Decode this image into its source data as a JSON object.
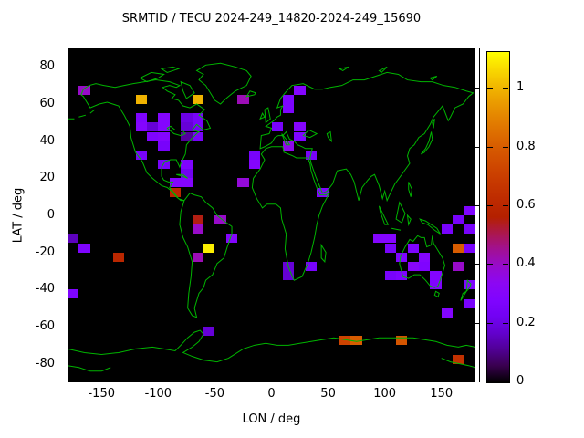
{
  "title": "SRMTID / TECU 2024-249_14820-2024-249_15690",
  "axes": {
    "x": {
      "label": "LON / deg",
      "range": [
        -180,
        180
      ],
      "ticks": [
        -150,
        -100,
        -50,
        0,
        50,
        100,
        150
      ]
    },
    "y": {
      "label": "LAT / deg",
      "range": [
        -90,
        90
      ],
      "ticks": [
        80,
        60,
        40,
        20,
        0,
        -20,
        -40,
        -60,
        -80
      ]
    }
  },
  "colorbar": {
    "range": [
      0,
      1.125
    ],
    "ticks": [
      0,
      0.2,
      0.4,
      0.6,
      0.8,
      1
    ],
    "tick_labels": [
      "0",
      "0.2",
      "0.4",
      "0.6",
      "0.8",
      "1"
    ],
    "palette": "gnuplot pm3d rgbformulae 7,5,15 (black-violet-magenta-red-orange-yellow)"
  },
  "colors": {
    "map_background": "#000000",
    "coastline": "#00b400",
    "text": "#000000",
    "page_background": "#ffffff"
  },
  "chart_data": {
    "type": "heatmap",
    "title": "SRMTID / TECU 2024-249_14820-2024-249_15690",
    "xlabel": "LON / deg",
    "ylabel": "LAT / deg",
    "xlim": [
      -180,
      180
    ],
    "ylim": [
      -90,
      90
    ],
    "value_range": [
      0,
      1.125
    ],
    "cell_size_deg": {
      "lon": 10,
      "lat": 5
    },
    "note": "points are [lon_center, lat_center, TECU value]; background cells = 0 (black)",
    "points": [
      [
        -165,
        67.5,
        0.4
      ],
      [
        -115,
        62.5,
        1.0
      ],
      [
        -65,
        62.5,
        1.0
      ],
      [
        -115,
        52.5,
        0.28
      ],
      [
        -95,
        52.5,
        0.3
      ],
      [
        -75,
        52.5,
        0.2
      ],
      [
        -65,
        52.5,
        0.25
      ],
      [
        -115,
        47.5,
        0.3
      ],
      [
        -105,
        47.5,
        0.18
      ],
      [
        -95,
        47.5,
        0.3
      ],
      [
        -75,
        47.5,
        0.18
      ],
      [
        -65,
        47.5,
        0.25
      ],
      [
        -105,
        42.5,
        0.28
      ],
      [
        -95,
        42.5,
        0.3
      ],
      [
        -75,
        42.5,
        0.12
      ],
      [
        -65,
        42.5,
        0.25
      ],
      [
        -95,
        37.5,
        0.25
      ],
      [
        -115,
        32.5,
        0.25
      ],
      [
        -95,
        27.5,
        0.25
      ],
      [
        -75,
        27.5,
        0.28
      ],
      [
        -75,
        22.5,
        0.22
      ],
      [
        -85,
        17.5,
        0.3
      ],
      [
        -75,
        17.5,
        0.3
      ],
      [
        -85,
        12.5,
        0.6
      ],
      [
        -25,
        62.5,
        0.42
      ],
      [
        25,
        67.5,
        0.3
      ],
      [
        15,
        62.5,
        0.27
      ],
      [
        15,
        57.5,
        0.27
      ],
      [
        5,
        47.5,
        0.25
      ],
      [
        25,
        47.5,
        0.3
      ],
      [
        25,
        42.5,
        0.28
      ],
      [
        15,
        37.5,
        0.35
      ],
      [
        -15,
        32.5,
        0.25
      ],
      [
        35,
        32.5,
        0.25
      ],
      [
        -15,
        27.5,
        0.3
      ],
      [
        -25,
        17.5,
        0.38
      ],
      [
        45,
        12.5,
        0.28
      ],
      [
        -175,
        -12.5,
        0.15
      ],
      [
        -165,
        -17.5,
        0.28
      ],
      [
        -135,
        -22.5,
        0.6
      ],
      [
        -175,
        -42.5,
        0.28
      ],
      [
        -65,
        -2.5,
        0.55
      ],
      [
        -45,
        -2.5,
        0.4
      ],
      [
        -65,
        -7.5,
        0.4
      ],
      [
        -35,
        -12.5,
        0.3
      ],
      [
        -55,
        -17.5,
        1.1
      ],
      [
        -65,
        -22.5,
        0.42
      ],
      [
        15,
        -27.5,
        0.18
      ],
      [
        35,
        -27.5,
        0.25
      ],
      [
        15,
        -32.5,
        0.18
      ],
      [
        -55,
        -62.5,
        0.18
      ],
      [
        175,
        2.5,
        0.28
      ],
      [
        165,
        -2.5,
        0.25
      ],
      [
        155,
        -7.5,
        0.25
      ],
      [
        175,
        -7.5,
        0.25
      ],
      [
        95,
        -12.5,
        0.3
      ],
      [
        105,
        -12.5,
        0.3
      ],
      [
        105,
        -17.5,
        0.25
      ],
      [
        125,
        -17.5,
        0.27
      ],
      [
        165,
        -17.5,
        0.8
      ],
      [
        175,
        -17.5,
        0.25
      ],
      [
        115,
        -22.5,
        0.28
      ],
      [
        135,
        -22.5,
        0.3
      ],
      [
        125,
        -27.5,
        0.32
      ],
      [
        135,
        -27.5,
        0.28
      ],
      [
        165,
        -27.5,
        0.4
      ],
      [
        105,
        -32.5,
        0.25
      ],
      [
        115,
        -32.5,
        0.28
      ],
      [
        145,
        -32.5,
        0.3
      ],
      [
        145,
        -37.5,
        0.28
      ],
      [
        175,
        -37.5,
        0.28
      ],
      [
        175,
        -47.5,
        0.25
      ],
      [
        155,
        -52.5,
        0.3
      ],
      [
        65,
        -67.5,
        0.72
      ],
      [
        75,
        -67.5,
        0.8
      ],
      [
        115,
        -67.5,
        0.78
      ],
      [
        165,
        -77.5,
        0.65
      ]
    ]
  }
}
